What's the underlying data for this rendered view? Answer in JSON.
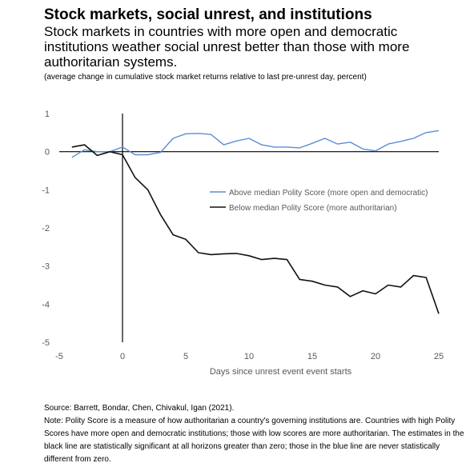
{
  "header": {
    "title": "Stock markets, social unrest, and institutions",
    "subtitle": "Stock markets in countries with more open and democratic institutions weather social unrest better than those with more authoritarian systems.",
    "units_note": "(average change in cumulative stock market returns relative to last pre-unrest day, percent)"
  },
  "footer": {
    "source": "Source: Barrett, Bondar, Chen, Chivakul, Igan (2021).",
    "note": "Note: Polity Score is a measure of how authoritarian a country's governing institutions are.  Countries with high Polity Scores have more open and democratic institutions; those with low scores are more authoritarian. The estimates in the black line are statistically significant at all horizons greater than zero; those in the blue line are never statistically different from zero."
  },
  "chart_data": {
    "type": "line",
    "xlabel": "Days since unrest event event starts",
    "ylabel": "",
    "xlim": [
      -5,
      25
    ],
    "ylim": [
      -5,
      1
    ],
    "xticks": [
      -5,
      0,
      5,
      10,
      15,
      20,
      25
    ],
    "yticks": [
      1,
      0,
      -1,
      -2,
      -3,
      -4,
      -5
    ],
    "grid": false,
    "legend_position": "center-right",
    "colors": {
      "above": "#5b8dd6",
      "below": "#111111"
    },
    "x": [
      -4,
      -3,
      -2,
      -1,
      0,
      1,
      2,
      3,
      4,
      5,
      6,
      7,
      8,
      9,
      10,
      11,
      12,
      13,
      14,
      15,
      16,
      17,
      18,
      19,
      20,
      21,
      22,
      23,
      24,
      25
    ],
    "series": [
      {
        "name": "Above median Polity Score (more open and democratic)",
        "key": "above",
        "values": [
          -0.15,
          0.05,
          0.0,
          0.0,
          0.12,
          -0.08,
          -0.08,
          -0.02,
          0.35,
          0.47,
          0.48,
          0.45,
          0.18,
          0.28,
          0.35,
          0.18,
          0.12,
          0.12,
          0.1,
          0.22,
          0.35,
          0.2,
          0.25,
          0.07,
          0.02,
          0.2,
          0.27,
          0.35,
          0.5,
          0.55
        ]
      },
      {
        "name": "Below median Polity Score (more authoritarian)",
        "key": "below",
        "values": [
          0.12,
          0.18,
          -0.1,
          0.0,
          -0.08,
          -0.68,
          -1.0,
          -1.65,
          -2.18,
          -2.3,
          -2.65,
          -2.7,
          -2.68,
          -2.67,
          -2.73,
          -2.83,
          -2.8,
          -2.83,
          -3.35,
          -3.4,
          -3.5,
          -3.55,
          -3.8,
          -3.65,
          -3.73,
          -3.5,
          -3.55,
          -3.25,
          -3.3,
          -4.25
        ]
      }
    ]
  }
}
